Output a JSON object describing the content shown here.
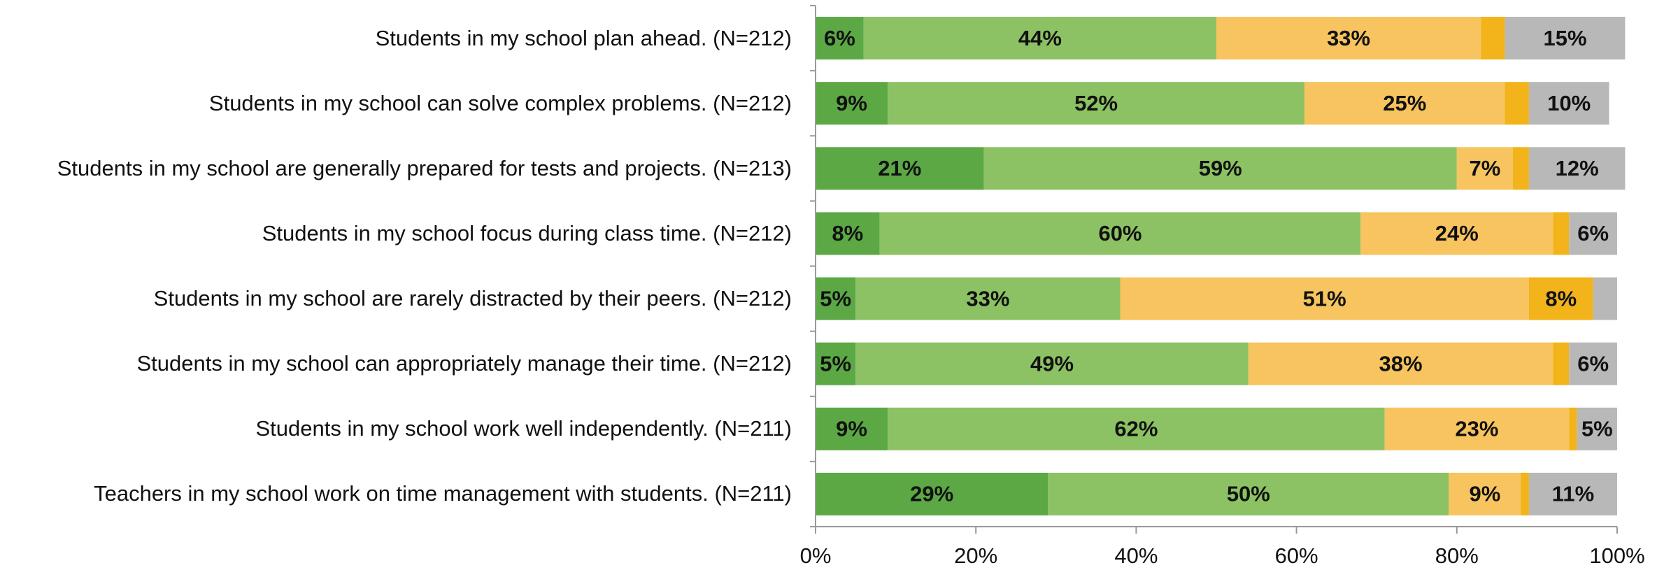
{
  "chart_data": {
    "type": "stacked-bar-horizontal",
    "categories": [
      "Students in my school plan ahead. (N=212)",
      "Students in my school can solve complex problems. (N=212)",
      "Students in my school are generally prepared for tests and projects. (N=213)",
      "Students in my school focus during class time. (N=212)",
      "Students in my school are rarely distracted by their peers. (N=212)",
      "Students in my school can appropriately manage their time. (N=212)",
      "Students in my school work well independently. (N=211)",
      "Teachers in my school work on time management with students. (N=211)"
    ],
    "series": [
      {
        "color": "#5ba845",
        "values": [
          6,
          9,
          21,
          8,
          5,
          5,
          9,
          29
        ],
        "value_labels": [
          "6%",
          "9%",
          "21%",
          "8%",
          "5%",
          "5%",
          "9%",
          "29%"
        ]
      },
      {
        "color": "#8cc263",
        "values": [
          44,
          52,
          59,
          60,
          33,
          49,
          62,
          50
        ],
        "value_labels": [
          "44%",
          "52%",
          "59%",
          "60%",
          "33%",
          "49%",
          "62%",
          "50%"
        ]
      },
      {
        "color": "#f7c45f",
        "values": [
          33,
          25,
          7,
          24,
          51,
          38,
          23,
          9
        ],
        "value_labels": [
          "33%",
          "25%",
          "7%",
          "24%",
          "51%",
          "38%",
          "23%",
          "9%"
        ]
      },
      {
        "color": "#f2b31b",
        "values": [
          3,
          3,
          2,
          2,
          8,
          2,
          1,
          1
        ],
        "value_labels": [
          null,
          null,
          null,
          null,
          "8%",
          null,
          null,
          null
        ]
      },
      {
        "color": "#b8b8b8",
        "values": [
          15,
          10,
          12,
          6,
          3,
          6,
          5,
          11
        ],
        "value_labels": [
          "15%",
          "10%",
          "12%",
          "6%",
          null,
          "6%",
          "5%",
          "11%"
        ]
      }
    ],
    "xlim": [
      0,
      100
    ],
    "xticks": [
      {
        "value": 0,
        "label": "0%"
      },
      {
        "value": 20,
        "label": "20%"
      },
      {
        "value": 40,
        "label": "40%"
      },
      {
        "value": 60,
        "label": "60%"
      },
      {
        "value": 80,
        "label": "80%"
      },
      {
        "value": 100,
        "label": "100%"
      }
    ]
  }
}
